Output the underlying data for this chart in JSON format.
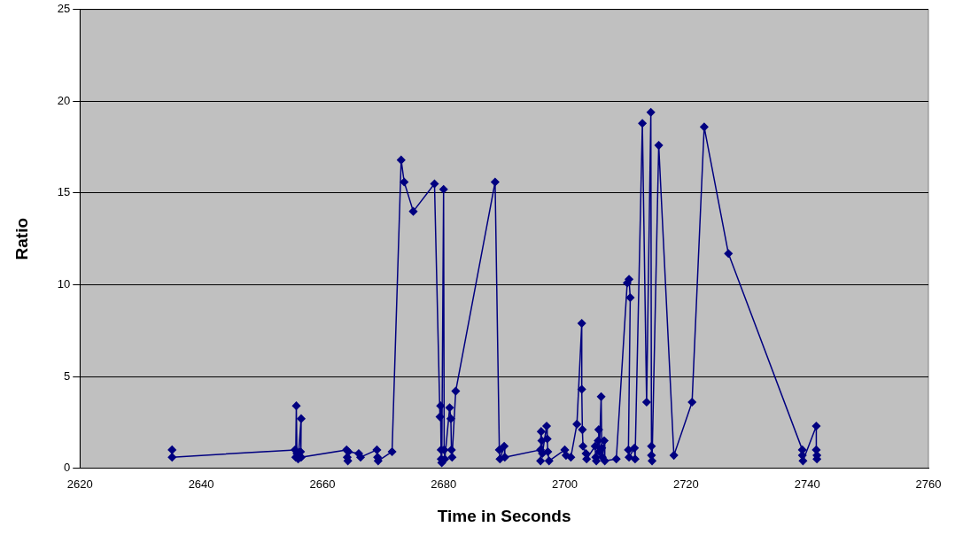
{
  "chart_data": {
    "type": "line",
    "xlabel": "Time in Seconds",
    "ylabel": "Ratio",
    "x": [
      2635.2,
      2635.2,
      2655.5,
      2655.6,
      2655.7,
      2655.8,
      2656.0,
      2656.5,
      2656.4,
      2656.5,
      2664.0,
      2664.1,
      2664.2,
      2664.3,
      2666.0,
      2666.3,
      2669.0,
      2669.1,
      2669.2,
      2671.5,
      2673.0,
      2673.5,
      2675.0,
      2678.5,
      2679.4,
      2679.5,
      2679.6,
      2679.6,
      2679.7,
      2680.0,
      2680.1,
      2680.2,
      2681.0,
      2681.2,
      2681.3,
      2681.4,
      2682.0,
      2688.5,
      2689.2,
      2689.3,
      2690.0,
      2690.1,
      2696.0,
      2696.0,
      2696.1,
      2696.2,
      2696.3,
      2697.0,
      2697.1,
      2697.2,
      2697.4,
      2700.0,
      2700.2,
      2701.0,
      2702.0,
      2702.8,
      2702.8,
      2702.9,
      2703.0,
      2703.5,
      2703.6,
      2705.0,
      2705.1,
      2705.2,
      2705.5,
      2705.6,
      2705.7,
      2706.0,
      2706.1,
      2706.2,
      2706.5,
      2706.6,
      2708.5,
      2710.3,
      2710.6,
      2710.8,
      2710.5,
      2710.6,
      2711.5,
      2711.6,
      2712.8,
      2713.5,
      2714.2,
      2714.3,
      2714.3,
      2714.4,
      2715.5,
      2718.0,
      2721.0,
      2723.0,
      2727.0,
      2739.2,
      2739.2,
      2739.3,
      2741.5,
      2741.5,
      2741.6,
      2741.6
    ],
    "values": [
      1.0,
      0.6,
      1.0,
      0.6,
      3.4,
      0.8,
      0.5,
      2.7,
      0.9,
      0.6,
      1.0,
      0.6,
      0.4,
      0.9,
      0.8,
      0.6,
      1.0,
      0.6,
      0.4,
      0.9,
      16.8,
      15.6,
      14.0,
      15.5,
      2.8,
      3.4,
      1.0,
      0.5,
      0.3,
      15.2,
      1.0,
      0.5,
      3.3,
      2.7,
      1.0,
      0.6,
      4.2,
      15.6,
      1.0,
      0.5,
      1.2,
      0.6,
      1.0,
      0.4,
      2.0,
      1.5,
      0.8,
      2.3,
      1.6,
      0.9,
      0.4,
      1.0,
      0.7,
      0.6,
      2.4,
      7.9,
      4.3,
      2.1,
      1.2,
      0.8,
      0.5,
      1.2,
      0.6,
      0.4,
      1.5,
      2.1,
      0.9,
      3.9,
      1.1,
      0.6,
      1.5,
      0.4,
      0.5,
      10.1,
      10.3,
      9.3,
      1.0,
      0.6,
      1.1,
      0.5,
      18.8,
      3.6,
      19.4,
      1.2,
      0.7,
      0.4,
      17.6,
      0.7,
      3.6,
      18.6,
      11.7,
      1.0,
      0.7,
      0.4,
      2.3,
      1.0,
      0.7,
      0.5
    ],
    "color": "#000080",
    "marker": "diamond",
    "line_style": "solid",
    "grid": "y",
    "legend": false,
    "xlim": [
      2620,
      2760
    ],
    "xticks": [
      2620,
      2640,
      2660,
      2680,
      2700,
      2720,
      2740,
      2760
    ],
    "ylim": [
      0,
      25
    ],
    "yticks": [
      0,
      5,
      10,
      15,
      20,
      25
    ]
  }
}
